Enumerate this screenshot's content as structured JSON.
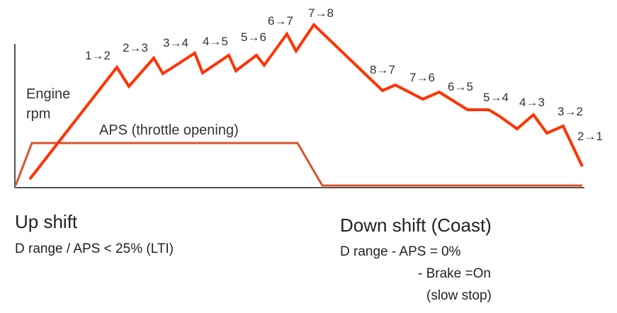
{
  "diagram": {
    "y_axis_label_line1": "Engine",
    "y_axis_label_line2": "rpm",
    "aps_label": "APS (throttle opening)",
    "upshift_labels": [
      "1→2",
      "2→3",
      "3→4",
      "4→5",
      "5→6",
      "6→7",
      "7→8"
    ],
    "downshift_labels": [
      "8→7",
      "7→6",
      "6→5",
      "5→4",
      "4→3",
      "3→2",
      "2→1"
    ],
    "colors": {
      "engine_rpm_line": "#ff3300",
      "aps_line": "#d9532e",
      "axis": "#555555"
    }
  },
  "captions": {
    "upshift_title": "Up shift",
    "upshift_subtitle": "D range / APS < 25% (LTI)",
    "downshift_title": "Down shift (Coast)",
    "downshift_line1": "D range - APS = 0%",
    "downshift_line2": "- Brake =On",
    "downshift_line3": "(slow stop)"
  }
}
